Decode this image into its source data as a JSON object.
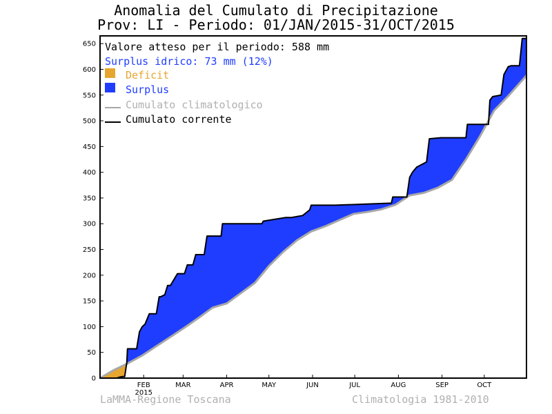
{
  "header": {
    "title_line1": "Anomalia del Cumulato di Precipitazione",
    "title_line2": "Prov: LI - Periodo: 01/JAN/2015-31/OCT/2015"
  },
  "footer": {
    "left": "LaMMA-Regione Toscana",
    "right": "Climatologia 1981-2010"
  },
  "legend": {
    "expected": "Valore atteso per il periodo: 588 mm",
    "surplus_text": "Surplus idrico: 73 mm (12%)",
    "deficit_label": "Deficit",
    "surplus_label": "Surplus",
    "climatology_label": "Cumulato climatologico",
    "current_label": "Cumulato corrente"
  },
  "colors": {
    "deficit": "#E6A630",
    "surplus": "#1F3DFF",
    "climatology": "#A8A8A8",
    "current": "#000000",
    "surplus_text": "#1F3DFF"
  },
  "chart_data": {
    "type": "area",
    "ylim": [
      0,
      665
    ],
    "xlim": [
      0,
      303
    ],
    "yticks": [
      0,
      50,
      100,
      150,
      200,
      250,
      300,
      350,
      400,
      450,
      500,
      550,
      600,
      650
    ],
    "month_ticks": [
      {
        "label": "FEB",
        "day": 31
      },
      {
        "label": "MAR",
        "day": 59
      },
      {
        "label": "APR",
        "day": 90
      },
      {
        "label": "MAY",
        "day": 120
      },
      {
        "label": "JUN",
        "day": 151
      },
      {
        "label": "JUL",
        "day": 181
      },
      {
        "label": "AUG",
        "day": 212
      },
      {
        "label": "SEP",
        "day": 243
      },
      {
        "label": "OCT",
        "day": 273
      }
    ],
    "year_label": "2015",
    "series": [
      {
        "name": "Cumulato climatologico",
        "x": [
          0,
          10,
          20,
          30,
          40,
          50,
          60,
          70,
          80,
          90,
          100,
          110,
          120,
          130,
          140,
          150,
          160,
          170,
          180,
          190,
          200,
          210,
          220,
          230,
          240,
          250,
          260,
          270,
          280,
          290,
          303
        ],
        "values": [
          0,
          16,
          29,
          44,
          62,
          80,
          98,
          117,
          137,
          145,
          165,
          185,
          218,
          245,
          268,
          285,
          295,
          307,
          319,
          323,
          328,
          337,
          355,
          360,
          370,
          385,
          425,
          470,
          520,
          548,
          588
        ]
      },
      {
        "name": "Cumulato corrente",
        "x": [
          0,
          12,
          14,
          16,
          17.5,
          19,
          19.5,
          26,
          28,
          30,
          32,
          35,
          37,
          40,
          42,
          43,
          46,
          48,
          50,
          55,
          60,
          62,
          66,
          68,
          74,
          76,
          79,
          80,
          86,
          87,
          92,
          115,
          116,
          132,
          134,
          136,
          144,
          149,
          150,
          167,
          207,
          208,
          218,
          220,
          222,
          225,
          232,
          234,
          242,
          244,
          260,
          261,
          276,
          277,
          279,
          285,
          286,
          287,
          290,
          292,
          298,
          300,
          303
        ],
        "values": [
          0,
          0,
          2,
          3,
          3,
          30,
          57,
          57,
          90,
          100,
          105,
          125,
          125,
          125,
          158,
          158,
          162,
          180,
          180,
          203,
          203,
          220,
          220,
          240,
          240,
          276,
          276,
          276,
          276,
          300,
          300,
          300,
          305,
          312,
          312,
          312,
          316,
          327,
          336,
          336,
          340,
          352,
          352,
          390,
          400,
          410,
          420,
          465,
          467,
          467,
          467,
          493,
          493,
          540,
          547,
          550,
          570,
          590,
          605,
          607,
          607,
          660,
          660
        ]
      }
    ]
  }
}
